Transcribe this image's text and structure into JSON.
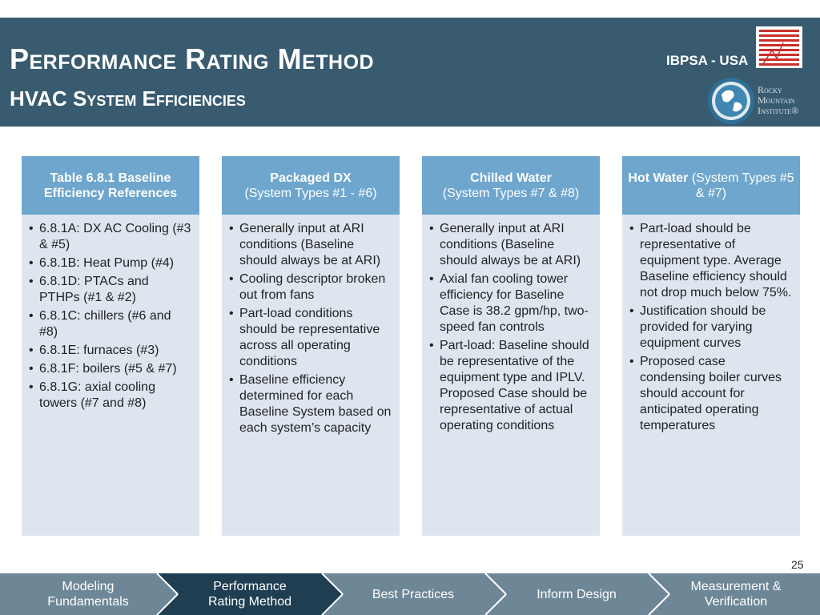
{
  "header": {
    "title": "Performance Rating Method",
    "subtitle": "HVAC System Efficiencies",
    "org_label": "IBPSA - USA",
    "logo_text": [
      "Rocky",
      "Mountain",
      "Institute®"
    ]
  },
  "columns": [
    {
      "head_bold": "Table 6.8.1 Baseline Efficiency References",
      "head_rest": "",
      "items": [
        "6.8.1A: DX AC Cooling (#3 & #5)",
        "6.8.1B: Heat Pump (#4)",
        "6.8.1D: PTACs and PTHPs (#1 & #2)",
        "6.8.1C: chillers (#6 and #8)",
        "6.8.1E: furnaces (#3)",
        "6.8.1F: boilers (#5 & #7)",
        "6.8.1G: axial cooling towers (#7 and #8)"
      ]
    },
    {
      "head_bold": "Packaged DX",
      "head_rest": "(System Types #1 - #6)",
      "items": [
        "Generally input at ARI conditions (Baseline should always be at ARI)",
        "Cooling descriptor broken out from fans",
        "Part-load conditions should be representative across all operating conditions",
        "Baseline efficiency determined for each Baseline System based on each system’s capacity"
      ]
    },
    {
      "head_bold": "Chilled Water",
      "head_rest": "(System Types #7 & #8)",
      "items": [
        "Generally input at ARI conditions (Baseline should always be at ARI)",
        "Axial fan cooling tower efficiency for Baseline Case is 38.2 gpm/hp, two-speed fan controls",
        "Part-load: Baseline should be representative of the equipment type and IPLV. Proposed Case should  be representative of actual operating conditions"
      ]
    },
    {
      "head_bold": "Hot Water",
      "head_rest": "(System Types #5 & #7)",
      "items": [
        "Part-load should be representative of equipment type. Average Baseline efficiency should not drop much below 75%.",
        "Justification should be provided for varying equipment curves",
        "Proposed case condensing boiler curves should account for anticipated operating temperatures"
      ]
    }
  ],
  "page_number": "25",
  "nav": [
    {
      "label": "Modeling\nFundamentals",
      "active": false
    },
    {
      "label": "Performance\nRating Method",
      "active": true
    },
    {
      "label": "Best Practices",
      "active": false
    },
    {
      "label": "Inform Design",
      "active": false
    },
    {
      "label": "Measurement &\nVerification",
      "active": false
    }
  ],
  "colors": {
    "header": "#385b70",
    "column_head": "#6ea6ce",
    "column_body": "#dde6ef",
    "nav_inactive": "#6e8797",
    "nav_active": "#1f3e52"
  }
}
